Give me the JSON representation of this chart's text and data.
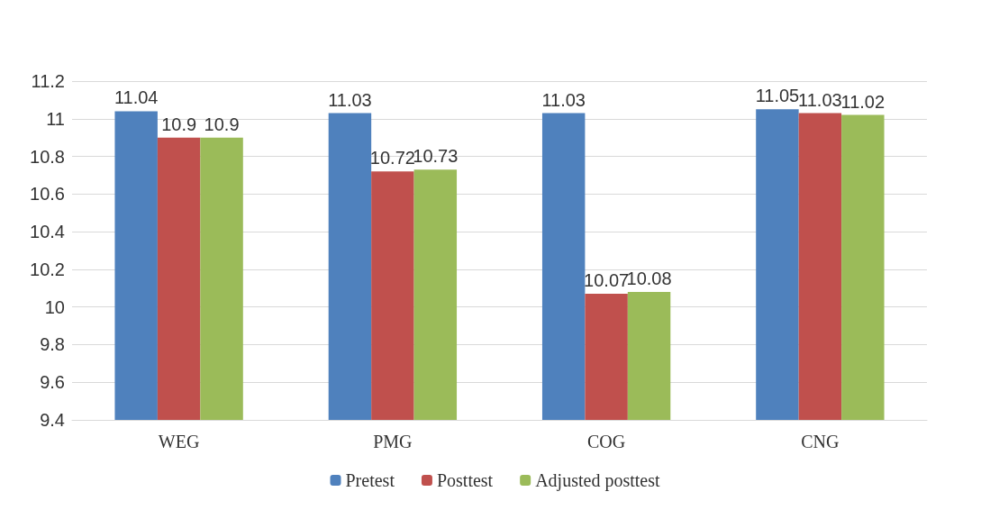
{
  "chart_data": {
    "type": "bar",
    "categories": [
      "WEG",
      "PMG",
      "COG",
      "CNG"
    ],
    "series": [
      {
        "name": "Pretest",
        "color": "#4f81bd",
        "values": [
          11.04,
          11.03,
          11.03,
          11.05
        ]
      },
      {
        "name": "Posttest",
        "color": "#c0504d",
        "values": [
          10.9,
          10.72,
          10.07,
          11.03
        ]
      },
      {
        "name": "Adjusted posttest",
        "color": "#9bbb59",
        "values": [
          10.9,
          10.73,
          10.08,
          11.02
        ]
      }
    ],
    "ylim": [
      9.4,
      11.2
    ],
    "yticks": [
      9.4,
      9.6,
      9.8,
      10,
      10.2,
      10.4,
      10.6,
      10.8,
      11,
      11.2
    ],
    "grid": "y",
    "legend": "bottom",
    "data_labels": true
  }
}
